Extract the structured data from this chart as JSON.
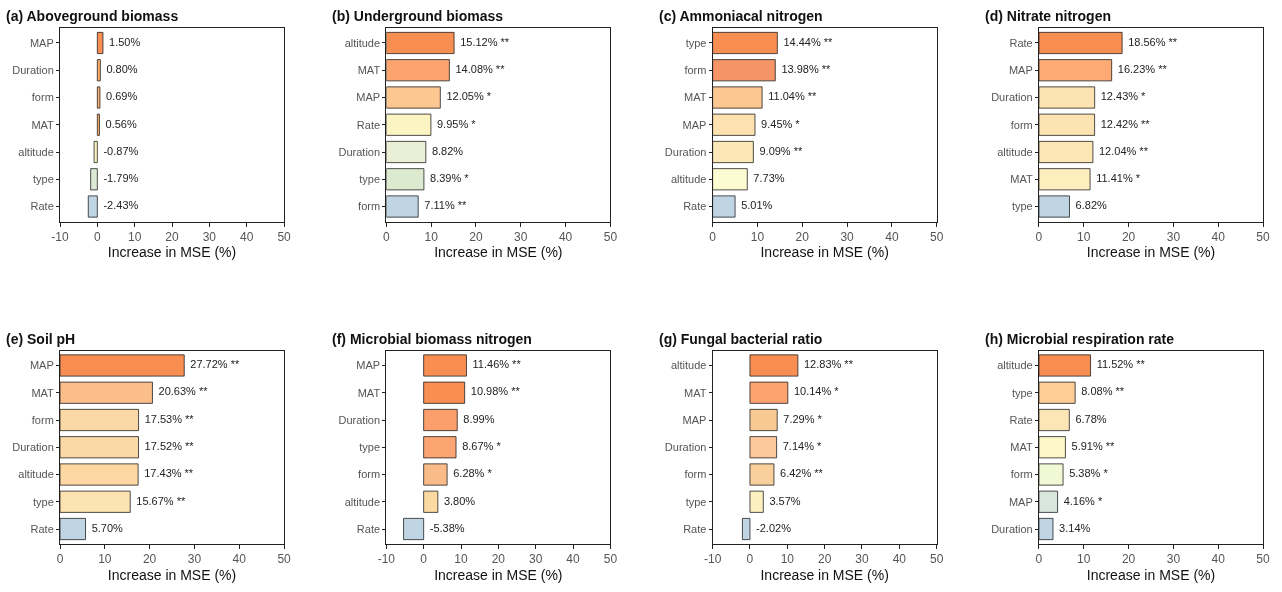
{
  "chart_data": [
    {
      "type": "bar",
      "orientation": "horizontal",
      "title": "(a) Aboveground biomass",
      "xlabel": "Increase in MSE (%)",
      "categories": [
        "MAP",
        "Duration",
        "form",
        "MAT",
        "altitude",
        "type",
        "Rate"
      ],
      "values": [
        1.5,
        0.8,
        0.69,
        0.56,
        -0.87,
        -1.79,
        -2.43
      ],
      "value_labels": [
        "1.50%",
        "0.80%",
        "0.69%",
        "0.56%",
        "-0.87%",
        "-1.79%",
        "-2.43%"
      ],
      "colors": [
        "#f98e52",
        "#fdae6b",
        "#fdae6b",
        "#fdae6b",
        "#fdf3c0",
        "#dce9d5",
        "#bfd5e4"
      ],
      "xlim": [
        -10,
        50
      ],
      "xticks": [
        -10,
        0,
        10,
        20,
        30,
        40,
        50
      ]
    },
    {
      "type": "bar",
      "orientation": "horizontal",
      "title": "(b) Underground biomass",
      "xlabel": "Increase in MSE (%)",
      "categories": [
        "altitude",
        "MAT",
        "MAP",
        "Rate",
        "Duration",
        "type",
        "form"
      ],
      "values": [
        15.12,
        14.08,
        12.05,
        9.95,
        8.82,
        8.39,
        7.11
      ],
      "value_labels": [
        "15.12% **",
        "14.08% **",
        "12.05% *",
        "9.95% *",
        "8.82%",
        "8.39% *",
        "7.11% **"
      ],
      "colors": [
        "#f98e52",
        "#fca46f",
        "#fdc792",
        "#fcf4c2",
        "#eaf0d6",
        "#dceacf",
        "#bfd5e4"
      ],
      "xlim": [
        0,
        50
      ],
      "xticks": [
        0,
        10,
        20,
        30,
        40,
        50
      ]
    },
    {
      "type": "bar",
      "orientation": "horizontal",
      "title": "(c) Ammoniacal nitrogen",
      "xlabel": "Increase in MSE (%)",
      "categories": [
        "type",
        "form",
        "MAT",
        "MAP",
        "Duration",
        "altitude",
        "Rate"
      ],
      "values": [
        14.44,
        13.98,
        11.04,
        9.45,
        9.09,
        7.73,
        5.01
      ],
      "value_labels": [
        "14.44% **",
        "13.98% **",
        "11.04% **",
        "9.45% *",
        "9.09% **",
        "7.73%",
        "5.01%"
      ],
      "colors": [
        "#f98e52",
        "#f59466",
        "#fdc792",
        "#fde2b0",
        "#fbe7b8",
        "#fdfbd2",
        "#bfd5e4"
      ],
      "xlim": [
        0,
        50
      ],
      "xticks": [
        0,
        10,
        20,
        30,
        40,
        50
      ]
    },
    {
      "type": "bar",
      "orientation": "horizontal",
      "title": "(d) Nitrate nitrogen",
      "xlabel": "Increase in MSE (%)",
      "categories": [
        "Rate",
        "MAP",
        "Duration",
        "form",
        "altitude",
        "MAT",
        "type"
      ],
      "values": [
        18.56,
        16.23,
        12.43,
        12.42,
        12.04,
        11.41,
        6.82
      ],
      "value_labels": [
        "18.56% **",
        "16.23% **",
        "12.43% *",
        "12.42% **",
        "12.04% **",
        "11.41% *",
        "6.82%"
      ],
      "colors": [
        "#f98e52",
        "#fdaa74",
        "#fde3b2",
        "#fde3b2",
        "#fde6b6",
        "#fdeebd",
        "#bfd5e4"
      ],
      "xlim": [
        0,
        50
      ],
      "xticks": [
        0,
        10,
        20,
        30,
        40,
        50
      ]
    },
    {
      "type": "bar",
      "orientation": "horizontal",
      "title": "(e) Soil pH",
      "xlabel": "Increase in MSE (%)",
      "categories": [
        "MAP",
        "MAT",
        "form",
        "Duration",
        "altitude",
        "type",
        "Rate"
      ],
      "values": [
        27.72,
        20.63,
        17.53,
        17.52,
        17.43,
        15.67,
        5.7
      ],
      "value_labels": [
        "27.72% **",
        "20.63% **",
        "17.53% **",
        "17.52% **",
        "17.43% **",
        "15.67% **",
        "5.70%"
      ],
      "colors": [
        "#f98e52",
        "#fbbd8a",
        "#fad9a6",
        "#fad9a6",
        "#fdd8a3",
        "#fde3b0",
        "#bfd5e4"
      ],
      "xlim": [
        0,
        50
      ],
      "xticks": [
        0,
        10,
        20,
        30,
        40,
        50
      ]
    },
    {
      "type": "bar",
      "orientation": "horizontal",
      "title": "(f) Microbial biomass nitrogen",
      "xlabel": "Increase in MSE (%)",
      "categories": [
        "MAP",
        "MAT",
        "Duration",
        "type",
        "form",
        "altitude",
        "Rate"
      ],
      "values": [
        11.46,
        10.98,
        8.99,
        8.67,
        6.28,
        3.8,
        -5.38
      ],
      "value_labels": [
        "11.46% **",
        "10.98% **",
        "8.99%",
        "8.67% *",
        "6.28% *",
        "3.80%",
        "-5.38%"
      ],
      "colors": [
        "#f98e52",
        "#f98e52",
        "#fba06c",
        "#fba572",
        "#f9bb87",
        "#fdd9a2",
        "#bfd5e4"
      ],
      "xlim": [
        -10,
        50
      ],
      "xticks": [
        -10,
        0,
        10,
        20,
        30,
        40,
        50
      ]
    },
    {
      "type": "bar",
      "orientation": "horizontal",
      "title": "(g) Fungal bacterial ratio",
      "xlabel": "Increase in MSE (%)",
      "categories": [
        "altitude",
        "MAT",
        "MAP",
        "Duration",
        "form",
        "type",
        "Rate"
      ],
      "values": [
        12.83,
        10.14,
        7.29,
        7.14,
        6.42,
        3.57,
        -2.02
      ],
      "value_labels": [
        "12.83% **",
        "10.14% *",
        "7.29% *",
        "7.14% *",
        "6.42% **",
        "3.57%",
        "-2.02%"
      ],
      "colors": [
        "#f98e52",
        "#fca46f",
        "#f8ca93",
        "#fcc79a",
        "#f9cf9c",
        "#fdf0c0",
        "#bfd5e4"
      ],
      "xlim": [
        -10,
        50
      ],
      "xticks": [
        -10,
        0,
        10,
        20,
        30,
        40,
        50
      ]
    },
    {
      "type": "bar",
      "orientation": "horizontal",
      "title": "(h) Microbial respiration rate",
      "xlabel": "Increase in MSE (%)",
      "categories": [
        "altitude",
        "type",
        "Rate",
        "MAT",
        "form",
        "MAP",
        "Duration"
      ],
      "values": [
        11.52,
        8.08,
        6.78,
        5.91,
        5.38,
        4.16,
        3.14
      ],
      "value_labels": [
        "11.52% **",
        "8.08% **",
        "6.78%",
        "5.91% **",
        "5.38% *",
        "4.16% *",
        "3.14%"
      ],
      "colors": [
        "#f98e52",
        "#fdcc97",
        "#fde6b6",
        "#fdf8c8",
        "#f1f8d4",
        "#d9e6de",
        "#bfd5e4"
      ],
      "xlim": [
        0,
        50
      ],
      "xticks": [
        0,
        10,
        20,
        30,
        40,
        50
      ]
    }
  ]
}
